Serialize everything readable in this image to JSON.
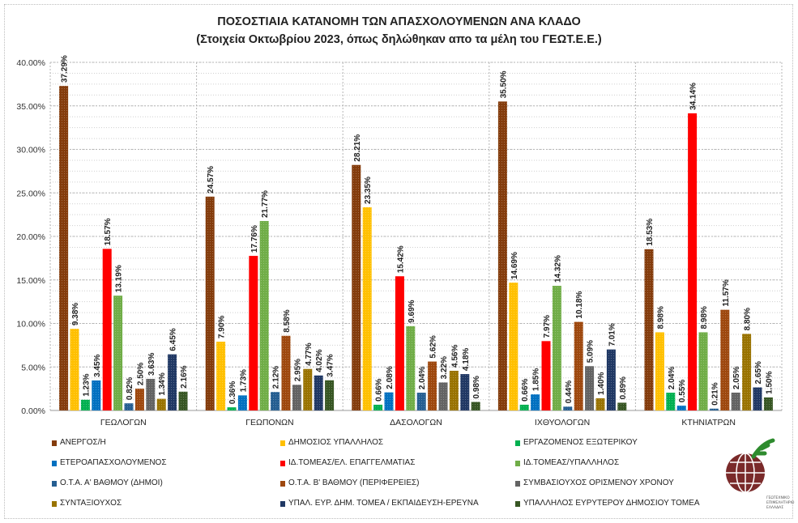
{
  "chart_data": {
    "type": "bar",
    "title": "ΠΟΣΟΣΤΙΑΙΑ ΚΑΤΑΝΟΜΗ ΤΩΝ ΑΠΑΣΧΟΛΟΥΜΕΝΩΝ ΑΝΑ ΚΛΑΔΟ",
    "subtitle": "(Στοιχεία Οκτωβρίου 2023, όπως δηλώθηκαν απο τα μέλη του ΓΕΩΤ.Ε.Ε.)",
    "xlabel": "",
    "ylabel": "",
    "ylim": [
      0,
      40
    ],
    "yticks": [
      "0.00%",
      "5.00%",
      "10.00%",
      "15.00%",
      "20.00%",
      "25.00%",
      "30.00%",
      "35.00%",
      "40.00%"
    ],
    "grid": true,
    "legend_position": "bottom",
    "categories": [
      "ΓΕΩΛΟΓΩΝ",
      "ΓΕΩΠΟΝΩΝ",
      "ΔΑΣΟΛΟΓΩΝ",
      "ΙΧΘΥΟΛΟΓΩΝ",
      "ΚΤΗΝΙΑΤΡΩΝ"
    ],
    "series": [
      {
        "name": "ΑΝΕΡΓΟΣ/Η",
        "color": "#843C0C",
        "values": [
          37.29,
          24.57,
          28.21,
          35.5,
          18.53
        ]
      },
      {
        "name": "ΔΗΜΟΣΙΟΣ ΥΠΑΛΛΗΛΟΣ",
        "color": "#FFC000",
        "values": [
          9.38,
          7.9,
          23.35,
          14.69,
          8.98
        ]
      },
      {
        "name": "ΕΡΓΑΖΟΜΕΝΟΣ ΕΞΩΤΕΡΙΚΟΥ",
        "color": "#00B050",
        "values": [
          1.23,
          0.36,
          0.66,
          0.66,
          2.04
        ]
      },
      {
        "name": "ΕΤΕΡΟΑΠΑΣΧΟΛΟΥΜΕΝΟΣ",
        "color": "#0070C0",
        "values": [
          3.45,
          1.73,
          2.08,
          1.85,
          0.55
        ]
      },
      {
        "name": "ΙΔ.ΤΟΜΕΑΣ/ΕΛ. ΕΠΑΓΓΕΛΜΑΤΙΑΣ",
        "color": "#FF0000",
        "values": [
          18.57,
          17.76,
          15.42,
          7.97,
          34.14
        ]
      },
      {
        "name": "ΙΔ.ΤΟΜΕΑΣ/ΥΠΑΛΛΗΛΟΣ",
        "color": "#70AD47",
        "values": [
          13.19,
          21.77,
          9.69,
          14.32,
          8.98
        ]
      },
      {
        "name": "Ο.Τ.Α. Α' ΒΑΘΜΟΥ (ΔΗΜΟΙ)",
        "color": "#255E91",
        "values": [
          0.82,
          2.12,
          2.04,
          0.44,
          0.21
        ]
      },
      {
        "name": "Ο.Τ.Α. Β' ΒΑΘΜΟΥ (ΠΕΡΙΦΕΡΕΙΕΣ)",
        "color": "#9E480E",
        "values": [
          2.5,
          8.58,
          5.62,
          10.18,
          11.57
        ]
      },
      {
        "name": "ΣΥΜΒΑΣΙΟΥΧΟΣ ΟΡΙΣΜΕΝΟΥ ΧΡΟΝΟΥ",
        "color": "#636363",
        "values": [
          3.63,
          2.95,
          3.22,
          5.09,
          2.05
        ]
      },
      {
        "name": "ΣΥΝΤΑΞΙΟΥΧΟΣ",
        "color": "#997300",
        "values": [
          1.34,
          4.77,
          4.56,
          1.4,
          8.8
        ]
      },
      {
        "name": "ΥΠΑΛ. ΕΥΡ. ΔΗΜ. ΤΟΜΕΑ / ΕΚΠΑΙΔΕΥΣΗ-ΕΡΕΥΝΑ",
        "color": "#203864",
        "values": [
          6.45,
          4.02,
          4.18,
          7.01,
          2.65
        ]
      },
      {
        "name": "ΥΠΑΛΛΗΛΟΣ ΕΥΡΥΤΕΡΟΥ ΔΗΜΟΣΙΟΥ ΤΟΜΕΑ",
        "color": "#375623",
        "values": [
          2.16,
          3.47,
          0.98,
          0.89,
          1.5
        ]
      }
    ],
    "data_labels": [
      [
        "37.29%",
        "9.38%",
        "1.23%",
        "3.45%",
        "18.57%",
        "13.19%",
        "0.82%",
        "2.50%",
        "3.63%",
        "1.34%",
        "6.45%",
        "2.16%"
      ],
      [
        "24.57%",
        "7.90%",
        "0.36%",
        "1.73%",
        "17.76%",
        "21.77%",
        "2.12%",
        "8.58%",
        "2.95%",
        "4.77%",
        "4.02%",
        "3.47%"
      ],
      [
        "28.21%",
        "23.35%",
        "0.66%",
        "2.08%",
        "15.42%",
        "9.69%",
        "2.04%",
        "5.62%",
        "3.22%",
        "4.56%",
        "4.18%",
        "0.98%"
      ],
      [
        "35.50%",
        "14.69%",
        "0.66%",
        "1.85%",
        "7.97%",
        "14.32%",
        "0.44%",
        "10.18%",
        "5.09%",
        "1.40%",
        "7.01%",
        "0.89%"
      ],
      [
        "18.53%",
        "8.98%",
        "2.04%",
        "0.55%",
        "34.14%",
        "8.98%",
        "0.21%",
        "11.57%",
        "2.05%",
        "8.80%",
        "2.65%",
        "1.50%"
      ]
    ]
  },
  "logo": {
    "name": "ΓΕΩΤ.Ε.Ε. logo",
    "text": "ΓΕΩΤΕΧΝΙΚΟ ΕΠΙΜΕΛΗΤΗΡΙΟ ΕΛΛΑΔΑΣ"
  }
}
